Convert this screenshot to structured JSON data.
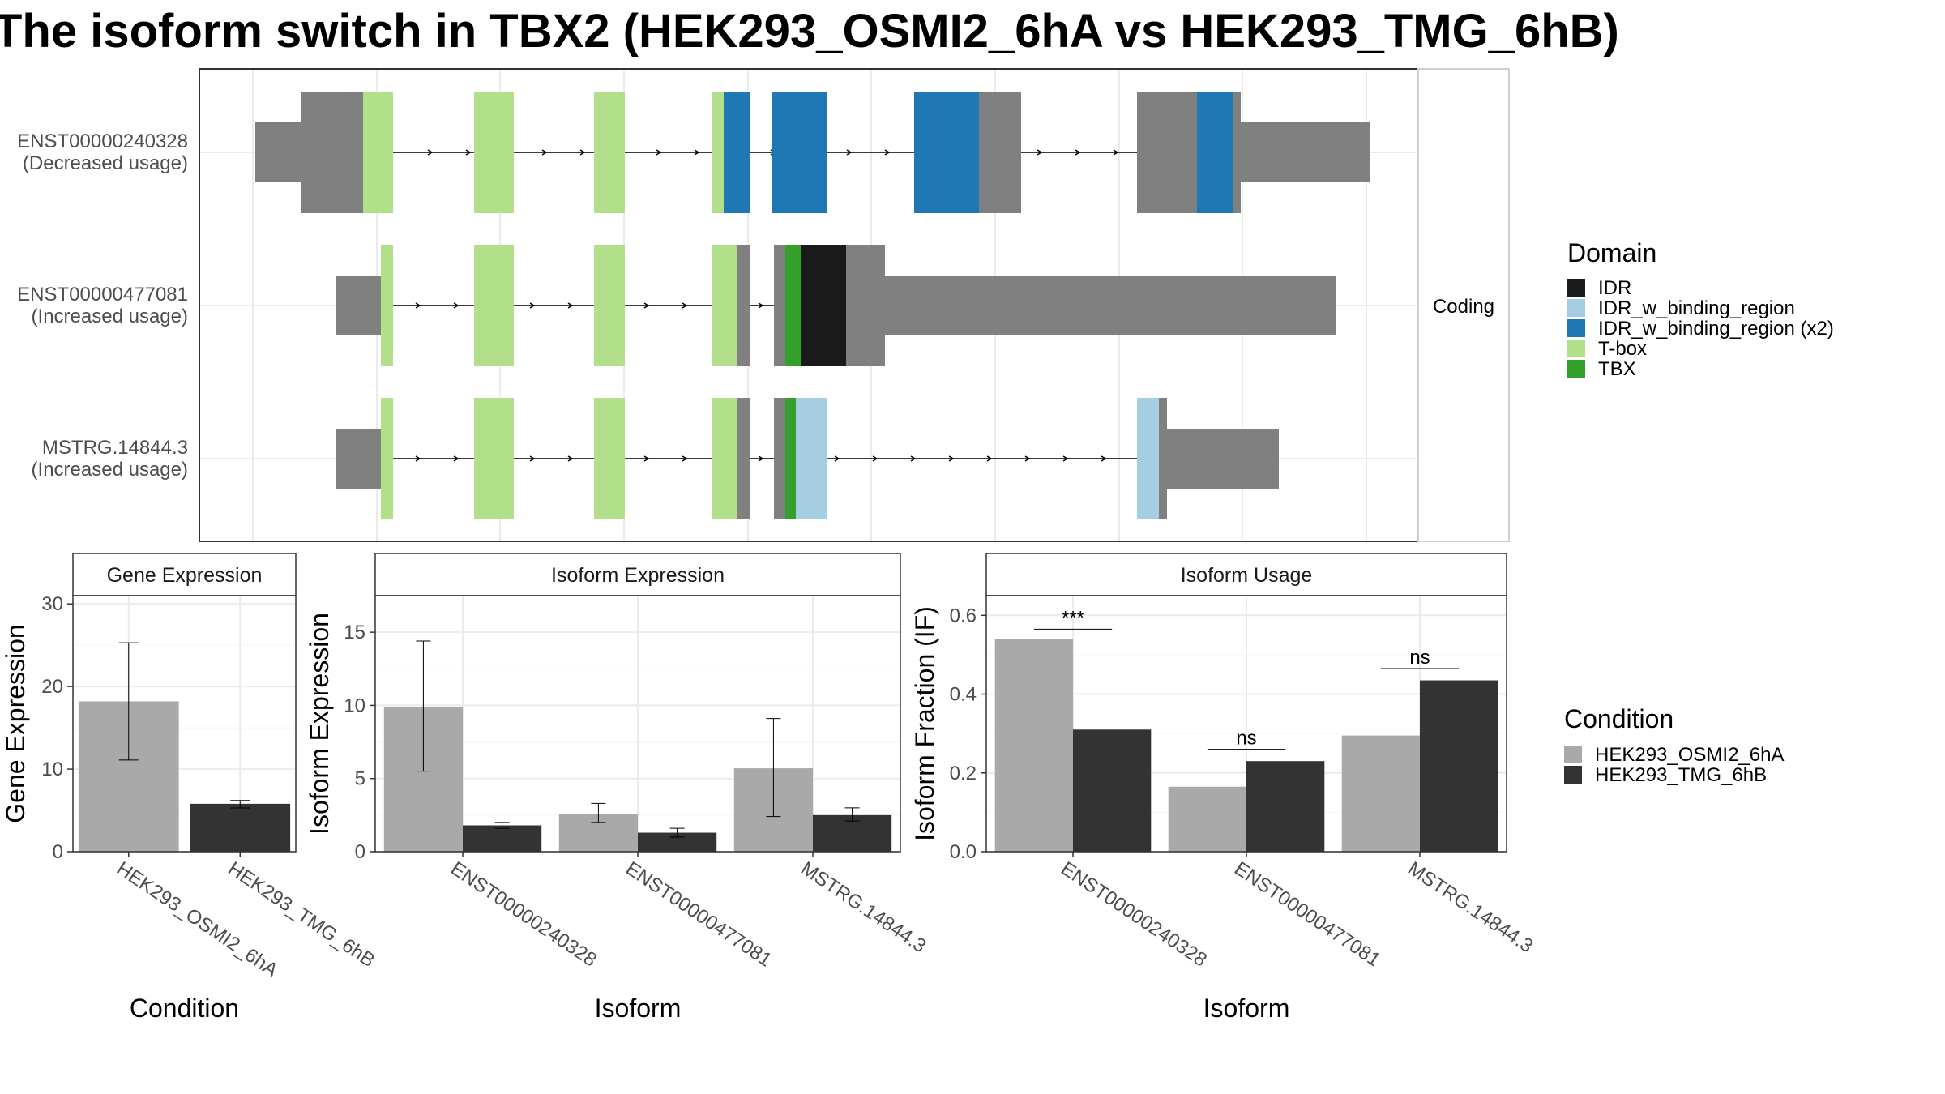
{
  "title": "The isoform switch in TBX2 (HEK293_OSMI2_6hA vs HEK293_TMG_6hB)",
  "transcript_panel": {
    "strip_label": "Coding",
    "isoforms": [
      {
        "id": "ENST00000240328",
        "note": "(Decreased usage)"
      },
      {
        "id": "ENST00000477081",
        "note": "(Increased usage)"
      },
      {
        "id": "MSTRG.14844.3",
        "note": "(Increased usage)"
      }
    ]
  },
  "domain_legend": {
    "title": "Domain",
    "items": [
      {
        "label": "IDR",
        "color": "#1a1a1a"
      },
      {
        "label": "IDR_w_binding_region",
        "color": "#a6cee3"
      },
      {
        "label": "IDR_w_binding_region (x2)",
        "color": "#1f78b4"
      },
      {
        "label": "T-box",
        "color": "#b2df8a"
      },
      {
        "label": "TBX",
        "color": "#33a02c"
      }
    ],
    "utr_color": "#808080"
  },
  "condition_legend": {
    "title": "Condition",
    "items": [
      {
        "label": "HEK293_OSMI2_6hA",
        "color": "#a9a9a9"
      },
      {
        "label": "HEK293_TMG_6hB",
        "color": "#333333"
      }
    ]
  },
  "chart_data": [
    {
      "type": "bar",
      "title": "Gene Expression",
      "xlabel": "Condition",
      "ylabel": "Gene Expression",
      "ylim": [
        0,
        31
      ],
      "yticks": [
        0,
        10,
        20,
        30
      ],
      "categories": [
        "HEK293_OSMI2_6hA",
        "HEK293_TMG_6hB"
      ],
      "values": [
        18.2,
        5.8
      ],
      "error_low": [
        11.1,
        5.3
      ],
      "error_high": [
        25.3,
        6.2
      ],
      "colors": [
        "#a9a9a9",
        "#333333"
      ]
    },
    {
      "type": "bar",
      "title": "Isoform Expression",
      "xlabel": "Isoform",
      "ylabel": "Isoform Expression",
      "ylim": [
        0,
        17.5
      ],
      "yticks": [
        0,
        5,
        10,
        15
      ],
      "categories": [
        "ENST00000240328",
        "ENST00000477081",
        "MSTRG.14844.3"
      ],
      "series": [
        {
          "name": "HEK293_OSMI2_6hA",
          "values": [
            9.9,
            2.6,
            5.7
          ],
          "error_low": [
            5.5,
            2.0,
            2.4
          ],
          "error_high": [
            14.4,
            3.3,
            9.1
          ]
        },
        {
          "name": "HEK293_TMG_6hB",
          "values": [
            1.8,
            1.3,
            2.5
          ],
          "error_low": [
            1.6,
            1.0,
            2.1
          ],
          "error_high": [
            2.0,
            1.6,
            3.0
          ]
        }
      ]
    },
    {
      "type": "bar",
      "title": "Isoform Usage",
      "xlabel": "Isoform",
      "ylabel": "Isoform Fraction (IF)",
      "ylim": [
        0,
        0.65
      ],
      "yticks": [
        0.0,
        0.2,
        0.4,
        0.6
      ],
      "ytick_labels": [
        "0.0",
        "0.2",
        "0.4",
        "0.6"
      ],
      "categories": [
        "ENST00000240328",
        "ENST00000477081",
        "MSTRG.14844.3"
      ],
      "series": [
        {
          "name": "HEK293_OSMI2_6hA",
          "values": [
            0.54,
            0.165,
            0.295
          ]
        },
        {
          "name": "HEK293_TMG_6hB",
          "values": [
            0.31,
            0.23,
            0.435
          ]
        }
      ],
      "significance": [
        "***",
        "ns",
        "ns"
      ],
      "significance_y": [
        0.565,
        0.26,
        0.465
      ]
    }
  ]
}
